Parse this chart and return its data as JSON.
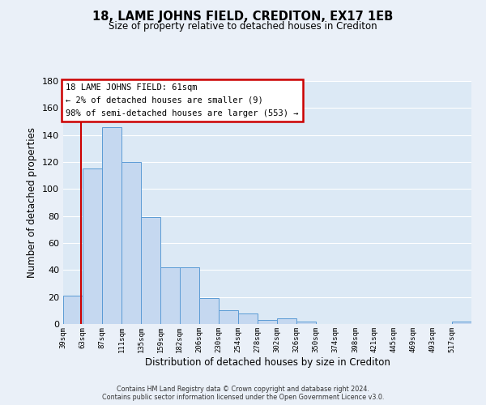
{
  "title": "18, LAME JOHNS FIELD, CREDITON, EX17 1EB",
  "subtitle": "Size of property relative to detached houses in Crediton",
  "xlabel": "Distribution of detached houses by size in Crediton",
  "ylabel": "Number of detached properties",
  "bar_color": "#c5d8f0",
  "bar_edge_color": "#5b9bd5",
  "background_color": "#dce9f5",
  "grid_color": "#ffffff",
  "fig_background_color": "#eaf0f8",
  "annotation_box_color": "#ffffff",
  "annotation_box_edge": "#cc0000",
  "property_line_color": "#cc0000",
  "property_x": 61,
  "annotation_title": "18 LAME JOHNS FIELD: 61sqm",
  "annotation_line1": "← 2% of detached houses are smaller (9)",
  "annotation_line2": "98% of semi-detached houses are larger (553) →",
  "footer_line1": "Contains HM Land Registry data © Crown copyright and database right 2024.",
  "footer_line2": "Contains public sector information licensed under the Open Government Licence v3.0.",
  "bin_edges": [
    39,
    63,
    87,
    111,
    135,
    159,
    182,
    206,
    230,
    254,
    278,
    302,
    326,
    350,
    374,
    398,
    421,
    445,
    469,
    493,
    517
  ],
  "bin_counts": [
    21,
    115,
    146,
    120,
    79,
    42,
    42,
    19,
    10,
    8,
    3,
    4,
    2,
    0,
    0,
    0,
    0,
    0,
    0,
    0,
    2
  ],
  "xlim_left": 39,
  "xlim_right": 541,
  "ylim_top": 180,
  "yticks": [
    0,
    20,
    40,
    60,
    80,
    100,
    120,
    140,
    160,
    180
  ],
  "tick_labels": [
    "39sqm",
    "63sqm",
    "87sqm",
    "111sqm",
    "135sqm",
    "159sqm",
    "182sqm",
    "206sqm",
    "230sqm",
    "254sqm",
    "278sqm",
    "302sqm",
    "326sqm",
    "350sqm",
    "374sqm",
    "398sqm",
    "421sqm",
    "445sqm",
    "469sqm",
    "493sqm",
    "517sqm"
  ]
}
